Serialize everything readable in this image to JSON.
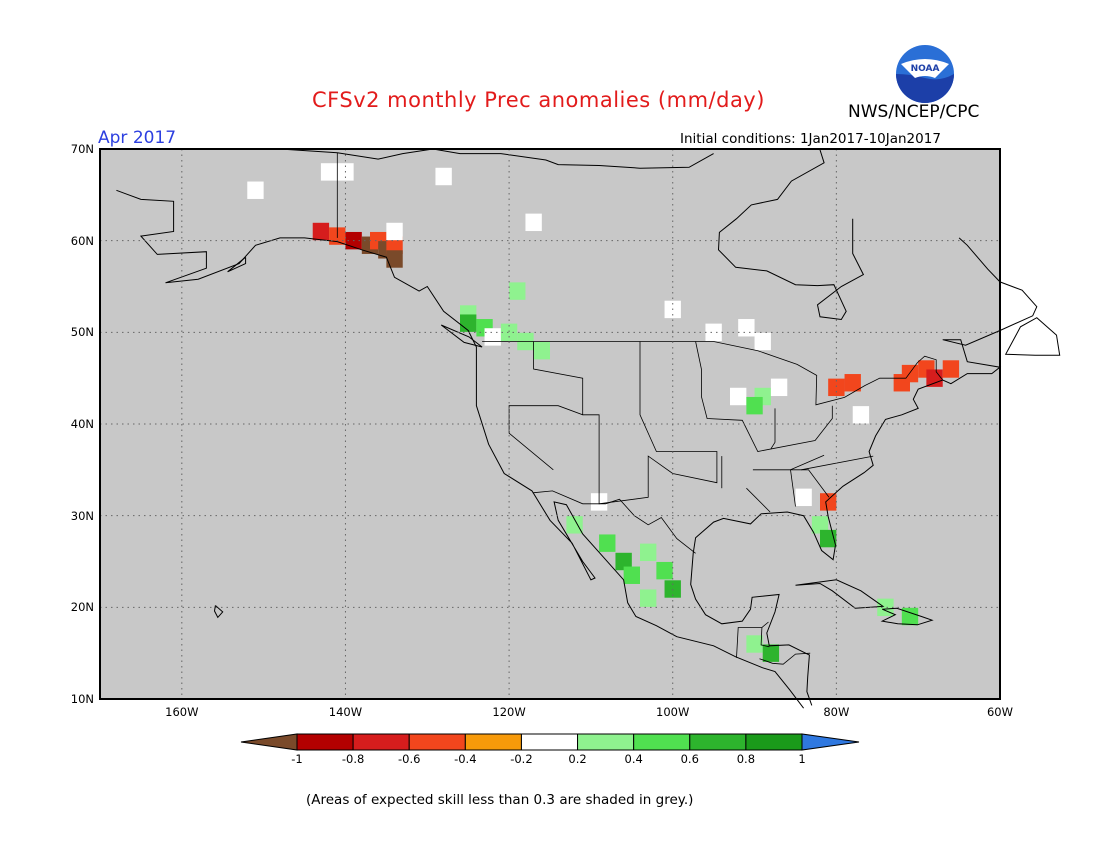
{
  "header": {
    "title": "CFSv2 monthly Prec anomalies (mm/day)",
    "agency": "NWS/NCEP/CPC",
    "logo_text": "NOAA",
    "month": "Apr 2017",
    "initial_conditions": "Initial conditions: 1Jan2017-10Jan2017"
  },
  "map": {
    "background_color": "#c8c8c8",
    "lon_range": [
      -170,
      -60
    ],
    "lat_range": [
      10,
      70
    ],
    "lat_labels": [
      "70N",
      "60N",
      "50N",
      "40N",
      "30N",
      "20N",
      "10N"
    ],
    "lon_labels": [
      "160W",
      "140W",
      "120W",
      "100W",
      "80W",
      "60W"
    ],
    "grid": true
  },
  "colorbar": {
    "colors": [
      "#7a4a2a",
      "#b30000",
      "#d61d1d",
      "#f2461d",
      "#f79a0a",
      "#ffffff",
      "#8ff28f",
      "#50e050",
      "#2db42d",
      "#1a9a1a",
      "#2f78e0"
    ],
    "labels": [
      "-1",
      "-0.8",
      "-0.6",
      "-0.4",
      "-0.2",
      "0.2",
      "0.4",
      "0.6",
      "0.8",
      "1"
    ]
  },
  "anomaly_cells": [
    {
      "lon": -142,
      "lat": 67.5,
      "value": 0
    },
    {
      "lon": -140,
      "lat": 67.5,
      "value": 0
    },
    {
      "lon": -128,
      "lat": 67,
      "value": 0
    },
    {
      "lon": -151,
      "lat": 65.5,
      "value": 0
    },
    {
      "lon": -117,
      "lat": 62,
      "value": 0
    },
    {
      "lon": -143,
      "lat": 61,
      "value": -0.5
    },
    {
      "lon": -141,
      "lat": 60.5,
      "value": -0.3
    },
    {
      "lon": -139,
      "lat": 60,
      "value": -0.7
    },
    {
      "lon": -137,
      "lat": 59.5,
      "value": -0.9
    },
    {
      "lon": -136,
      "lat": 60,
      "value": -0.3
    },
    {
      "lon": -135,
      "lat": 59,
      "value": -0.9
    },
    {
      "lon": -134,
      "lat": 59.5,
      "value": -0.3
    },
    {
      "lon": -134,
      "lat": 58,
      "value": -0.9
    },
    {
      "lon": -134,
      "lat": 61,
      "value": 0
    },
    {
      "lon": -119,
      "lat": 54.5,
      "value": 0.3
    },
    {
      "lon": -125,
      "lat": 52,
      "value": 0.3
    },
    {
      "lon": -125,
      "lat": 51,
      "value": 0.7
    },
    {
      "lon": -123,
      "lat": 50.5,
      "value": 0.5
    },
    {
      "lon": -122,
      "lat": 49.5,
      "value": 0
    },
    {
      "lon": -120,
      "lat": 50,
      "value": 0.3
    },
    {
      "lon": -118,
      "lat": 49,
      "value": 0.3
    },
    {
      "lon": -116,
      "lat": 48,
      "value": 0.3
    },
    {
      "lon": -100,
      "lat": 52.5,
      "value": 0
    },
    {
      "lon": -95,
      "lat": 50,
      "value": 0
    },
    {
      "lon": -91,
      "lat": 50.5,
      "value": 0
    },
    {
      "lon": -89,
      "lat": 49,
      "value": 0
    },
    {
      "lon": -92,
      "lat": 43,
      "value": 0
    },
    {
      "lon": -89,
      "lat": 43,
      "value": 0.3
    },
    {
      "lon": -87,
      "lat": 44,
      "value": 0
    },
    {
      "lon": -90,
      "lat": 42,
      "value": 0.5
    },
    {
      "lon": -80,
      "lat": 44,
      "value": -0.3
    },
    {
      "lon": -78,
      "lat": 44.5,
      "value": -0.3
    },
    {
      "lon": -72,
      "lat": 44.5,
      "value": -0.3
    },
    {
      "lon": -71,
      "lat": 45.5,
      "value": -0.3
    },
    {
      "lon": -69,
      "lat": 46,
      "value": -0.3
    },
    {
      "lon": -68,
      "lat": 45,
      "value": -0.5
    },
    {
      "lon": -66,
      "lat": 46,
      "value": -0.3
    },
    {
      "lon": -77,
      "lat": 41,
      "value": 0
    },
    {
      "lon": -84,
      "lat": 32,
      "value": 0
    },
    {
      "lon": -81,
      "lat": 31.5,
      "value": -0.3
    },
    {
      "lon": -82,
      "lat": 29,
      "value": 0.3
    },
    {
      "lon": -81,
      "lat": 27.5,
      "value": 0.7
    },
    {
      "lon": -109,
      "lat": 31.5,
      "value": 0
    },
    {
      "lon": -112,
      "lat": 29,
      "value": 0.3
    },
    {
      "lon": -108,
      "lat": 27,
      "value": 0.5
    },
    {
      "lon": -106,
      "lat": 25,
      "value": 0.7
    },
    {
      "lon": -105,
      "lat": 23.5,
      "value": 0.5
    },
    {
      "lon": -103,
      "lat": 26,
      "value": 0.3
    },
    {
      "lon": -101,
      "lat": 24,
      "value": 0.5
    },
    {
      "lon": -103,
      "lat": 21,
      "value": 0.3
    },
    {
      "lon": -100,
      "lat": 22,
      "value": 0.7
    },
    {
      "lon": -90,
      "lat": 16,
      "value": 0.3
    },
    {
      "lon": -88,
      "lat": 15,
      "value": 0.7
    },
    {
      "lon": -74,
      "lat": 20,
      "value": 0.3
    },
    {
      "lon": -71,
      "lat": 19,
      "value": 0.5
    }
  ]
}
